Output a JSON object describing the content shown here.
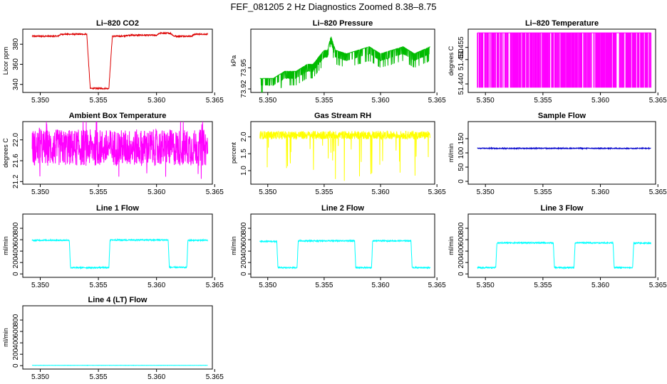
{
  "title": "FEF_081205  2 Hz Diagnostics Zoomed 8.38–8.75",
  "chart_data": [
    {
      "type": "line",
      "title": "Li–820 CO2",
      "xlabel": "",
      "ylabel": "Licor ppm",
      "color": "#dd0000",
      "xlim": [
        5.3485,
        5.3648
      ],
      "ylim": [
        332,
        395
      ],
      "xticks": [
        "5.350",
        "5.355",
        "5.360",
        "5.365"
      ],
      "xtick_values": [
        5.35,
        5.355,
        5.36,
        5.365
      ],
      "yticks": [
        "340",
        "360",
        "380"
      ],
      "ytick_values": [
        340,
        360,
        380
      ],
      "noise": 0.6,
      "series": [
        {
          "x": [
            5.3493,
            5.3515,
            5.3518,
            5.354,
            5.3543,
            5.3559,
            5.3562,
            5.3572,
            5.3575,
            5.36,
            5.3603,
            5.3612,
            5.3615,
            5.363,
            5.3633,
            5.3644
          ],
          "y": [
            388,
            388,
            390,
            390,
            336,
            336,
            388,
            388,
            389,
            389,
            391,
            391,
            388,
            388,
            390,
            390
          ]
        }
      ]
    },
    {
      "type": "line",
      "title": "Li–820 Pressure",
      "xlabel": "",
      "ylabel": "kPa",
      "color": "#00bb00",
      "xlim": [
        5.3485,
        5.3648
      ],
      "ylim": [
        73.915,
        74.005
      ],
      "xticks": [
        "5.350",
        "5.355",
        "5.360",
        "5.365"
      ],
      "xtick_values": [
        5.35,
        5.355,
        5.36,
        5.365
      ],
      "yticks": [
        "73.92",
        "73.95"
      ],
      "ytick_values": [
        73.92,
        73.95
      ],
      "noise": 0,
      "series": [
        {
          "x": [
            5.3493,
            5.35,
            5.3505,
            5.3515,
            5.3525,
            5.3535,
            5.354,
            5.355,
            5.3553,
            5.3556,
            5.356,
            5.357,
            5.358,
            5.359,
            5.36,
            5.361,
            5.362,
            5.363,
            5.3644
          ],
          "y": [
            73.935,
            73.935,
            73.935,
            73.945,
            73.945,
            73.955,
            73.955,
            73.975,
            73.975,
            73.995,
            73.975,
            73.97,
            73.975,
            73.98,
            73.97,
            73.975,
            73.98,
            73.97,
            73.98
          ]
        }
      ]
    },
    {
      "type": "line",
      "title": "Li–820 Temperature",
      "xlabel": "",
      "ylabel": "degrees C",
      "color": "#ff00ff",
      "xlim": [
        5.3485,
        5.3648
      ],
      "ylim": [
        51.4365,
        51.4625
      ],
      "xticks": [
        "5.350",
        "5.355",
        "5.360",
        "5.365"
      ],
      "xtick_values": [
        5.35,
        5.355,
        5.36,
        5.365
      ],
      "yticks": [
        "51.440",
        "51.450",
        "51.455"
      ],
      "ytick_values": [
        51.44,
        51.45,
        51.455
      ],
      "noise": 0,
      "series": [
        {
          "x": [
            5.3493,
            5.3644
          ],
          "y": [
            51.4385,
            51.461
          ]
        }
      ]
    },
    {
      "type": "line",
      "title": "Ambient Box Temperature",
      "xlabel": "",
      "ylabel": "degrees C",
      "color": "#ff00ff",
      "xlim": [
        5.3485,
        5.3648
      ],
      "ylim": [
        21.15,
        22.35
      ],
      "xticks": [
        "5.350",
        "5.355",
        "5.360",
        "5.365"
      ],
      "xtick_values": [
        5.35,
        5.355,
        5.36,
        5.365
      ],
      "yticks": [
        "21.2",
        "21.6",
        "22.0"
      ],
      "ytick_values": [
        21.2,
        21.6,
        22.0
      ],
      "noise": 0.35,
      "series": [
        {
          "x": [
            5.3493,
            5.3644
          ],
          "y": [
            21.85,
            21.85
          ]
        }
      ]
    },
    {
      "type": "line",
      "title": "Gas Stream RH",
      "xlabel": "",
      "ylabel": "percent",
      "color": "#ffff00",
      "xlim": [
        5.3485,
        5.3648
      ],
      "ylim": [
        0.6,
        2.45
      ],
      "xticks": [
        "5.350",
        "5.355",
        "5.360",
        "5.365"
      ],
      "xtick_values": [
        5.35,
        5.355,
        5.36,
        5.365
      ],
      "yticks": [
        "1.0",
        "1.5",
        "2.0"
      ],
      "ytick_values": [
        1.0,
        1.5,
        2.0
      ],
      "noise": 0.12,
      "series": [
        {
          "x": [
            5.3493,
            5.3644
          ],
          "y": [
            2.05,
            2.05
          ]
        }
      ]
    },
    {
      "type": "line",
      "title": "Sample Flow",
      "xlabel": "",
      "ylabel": "ml/min",
      "color": "#0000cc",
      "xlim": [
        5.3485,
        5.3648
      ],
      "ylim": [
        -10,
        210
      ],
      "xticks": [
        "5.350",
        "5.355",
        "5.360",
        "5.365"
      ],
      "xtick_values": [
        5.35,
        5.355,
        5.36,
        5.365
      ],
      "yticks": [
        "0",
        "50",
        "100",
        "150"
      ],
      "ytick_values": [
        0,
        50,
        100,
        150
      ],
      "noise": 1.5,
      "series": [
        {
          "x": [
            5.3493,
            5.3644
          ],
          "y": [
            116,
            116
          ]
        }
      ]
    },
    {
      "type": "line",
      "title": "Line 1 Flow",
      "xlabel": "",
      "ylabel": "ml/min",
      "color": "#00ffff",
      "xlim": [
        5.3485,
        5.3648
      ],
      "ylim": [
        -60,
        1050
      ],
      "xticks": [
        "5.350",
        "5.355",
        "5.360",
        "5.365"
      ],
      "xtick_values": [
        5.35,
        5.355,
        5.36,
        5.365
      ],
      "yticks": [
        "0",
        "200",
        "400",
        "600",
        "800"
      ],
      "ytick_values": [
        0,
        200,
        400,
        600,
        800
      ],
      "noise": 10,
      "series": [
        {
          "x": [
            5.3493,
            5.3525,
            5.3526,
            5.3559,
            5.356,
            5.361,
            5.3611,
            5.3626,
            5.3627,
            5.3644
          ],
          "y": [
            590,
            590,
            110,
            110,
            595,
            595,
            115,
            115,
            590,
            590
          ]
        }
      ]
    },
    {
      "type": "line",
      "title": "Line 2 Flow",
      "xlabel": "",
      "ylabel": "ml/min",
      "color": "#00ffff",
      "xlim": [
        5.3485,
        5.3648
      ],
      "ylim": [
        -60,
        1050
      ],
      "xticks": [
        "5.350",
        "5.355",
        "5.360",
        "5.365"
      ],
      "xtick_values": [
        5.35,
        5.355,
        5.36,
        5.365
      ],
      "yticks": [
        "0",
        "200",
        "400",
        "600",
        "800"
      ],
      "ytick_values": [
        0,
        200,
        400,
        600,
        800
      ],
      "noise": 10,
      "series": [
        {
          "x": [
            5.3493,
            5.3508,
            5.3509,
            5.3526,
            5.3527,
            5.3577,
            5.3578,
            5.3592,
            5.3593,
            5.3627,
            5.3628,
            5.3644
          ],
          "y": [
            570,
            570,
            110,
            110,
            580,
            580,
            110,
            110,
            580,
            580,
            110,
            110
          ]
        }
      ]
    },
    {
      "type": "line",
      "title": "Line 3 Flow",
      "xlabel": "",
      "ylabel": "ml/min",
      "color": "#00ffff",
      "xlim": [
        5.3485,
        5.3648
      ],
      "ylim": [
        -60,
        1050
      ],
      "xticks": [
        "5.350",
        "5.355",
        "5.360",
        "5.365"
      ],
      "xtick_values": [
        5.35,
        5.355,
        5.36,
        5.365
      ],
      "yticks": [
        "0",
        "200",
        "400",
        "600",
        "800"
      ],
      "ytick_values": [
        0,
        200,
        400,
        600,
        800
      ],
      "noise": 10,
      "series": [
        {
          "x": [
            5.3493,
            5.3509,
            5.351,
            5.3559,
            5.356,
            5.3577,
            5.3578,
            5.3611,
            5.3612,
            5.3628,
            5.3629,
            5.3644
          ],
          "y": [
            110,
            110,
            545,
            545,
            110,
            110,
            545,
            545,
            110,
            110,
            540,
            540
          ]
        }
      ]
    },
    {
      "type": "line",
      "title": "Line 4 (LT) Flow",
      "xlabel": "",
      "ylabel": "ml/min",
      "color": "#00ffff",
      "xlim": [
        5.3485,
        5.3648
      ],
      "ylim": [
        -60,
        1050
      ],
      "xticks": [
        "5.350",
        "5.355",
        "5.360",
        "5.365"
      ],
      "xtick_values": [
        5.35,
        5.355,
        5.36,
        5.365
      ],
      "yticks": [
        "0",
        "200",
        "400",
        "600",
        "800"
      ],
      "ytick_values": [
        0,
        200,
        400,
        600,
        800
      ],
      "noise": 2,
      "series": [
        {
          "x": [
            5.3493,
            5.3644
          ],
          "y": [
            5,
            5
          ]
        }
      ]
    }
  ]
}
